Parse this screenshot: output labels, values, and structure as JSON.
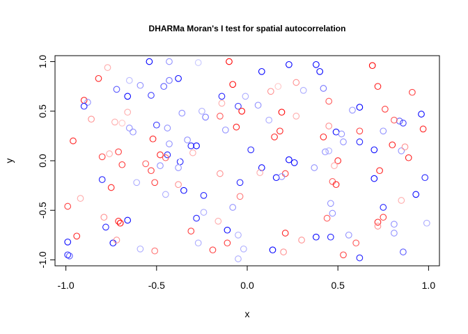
{
  "chart_data": {
    "type": "scatter",
    "title": "DHARMa Moran's I test for spatial autocorrelation",
    "xlabel": "x",
    "ylabel": "y",
    "xlim": [
      -1.06,
      1.06
    ],
    "ylim": [
      -1.06,
      1.06
    ],
    "xticks": [
      -1.0,
      -0.5,
      0.0,
      0.5,
      1.0
    ],
    "yticks": [
      -1.0,
      -0.5,
      0.0,
      0.5,
      1.0
    ],
    "xtick_labels": [
      "-1.0",
      "-0.5",
      "0.0",
      "0.5",
      "1.0"
    ],
    "ytick_labels": [
      "-1.0",
      "-0.5",
      "0.0",
      "0.5",
      "1.0"
    ],
    "marker": "open circle",
    "color_scale": "blue (low residual) to red (high residual), paler = closer to middle",
    "colors": {
      "low": "#0000ff",
      "high": "#ff0000"
    },
    "points": [
      {
        "x": -0.54,
        "y": 1.0,
        "c": 0.0
      },
      {
        "x": -0.43,
        "y": 1.0,
        "c": 0.3
      },
      {
        "x": -0.27,
        "y": 0.99,
        "c": 0.4
      },
      {
        "x": -0.1,
        "y": 1.0,
        "c": 1.0
      },
      {
        "x": 0.23,
        "y": 0.97,
        "c": 0.0
      },
      {
        "x": 0.38,
        "y": 0.97,
        "c": 0.0
      },
      {
        "x": 0.69,
        "y": 0.96,
        "c": 1.0
      },
      {
        "x": -0.77,
        "y": 0.94,
        "c": 0.65
      },
      {
        "x": 0.08,
        "y": 0.9,
        "c": 0.0
      },
      {
        "x": 0.4,
        "y": 0.9,
        "c": 0.0
      },
      {
        "x": -0.82,
        "y": 0.83,
        "c": 0.9
      },
      {
        "x": -0.65,
        "y": 0.81,
        "c": 0.38
      },
      {
        "x": -0.43,
        "y": 0.81,
        "c": 0.25
      },
      {
        "x": -0.38,
        "y": 0.83,
        "c": 0.05
      },
      {
        "x": -0.08,
        "y": 0.77,
        "c": 0.95
      },
      {
        "x": 0.27,
        "y": 0.79,
        "c": 0.7
      },
      {
        "x": 0.72,
        "y": 0.75,
        "c": 0.9
      },
      {
        "x": -0.72,
        "y": 0.72,
        "c": 0.2
      },
      {
        "x": -0.59,
        "y": 0.76,
        "c": 0.3
      },
      {
        "x": -0.46,
        "y": 0.75,
        "c": 0.2
      },
      {
        "x": 0.17,
        "y": 0.75,
        "c": 0.6
      },
      {
        "x": 0.31,
        "y": 0.71,
        "c": 0.35
      },
      {
        "x": 0.42,
        "y": 0.73,
        "c": 0.25
      },
      {
        "x": 0.13,
        "y": 0.7,
        "c": 0.7
      },
      {
        "x": 0.91,
        "y": 0.69,
        "c": 0.85
      },
      {
        "x": -0.66,
        "y": 0.65,
        "c": 0.0
      },
      {
        "x": -0.53,
        "y": 0.66,
        "c": 0.15
      },
      {
        "x": -0.14,
        "y": 0.65,
        "c": 0.1
      },
      {
        "x": -0.01,
        "y": 0.65,
        "c": 0.35
      },
      {
        "x": -0.9,
        "y": 0.61,
        "c": 0.9
      },
      {
        "x": -0.88,
        "y": 0.59,
        "c": 0.3
      },
      {
        "x": -0.9,
        "y": 0.55,
        "c": 0.1
      },
      {
        "x": -0.14,
        "y": 0.58,
        "c": 0.65
      },
      {
        "x": 0.45,
        "y": 0.6,
        "c": 0.8
      },
      {
        "x": -0.05,
        "y": 0.55,
        "c": 0.15
      },
      {
        "x": 0.06,
        "y": 0.56,
        "c": 0.3
      },
      {
        "x": 0.62,
        "y": 0.54,
        "c": 0.0
      },
      {
        "x": 0.58,
        "y": 0.51,
        "c": 0.3
      },
      {
        "x": 0.76,
        "y": 0.52,
        "c": 0.85
      },
      {
        "x": -0.03,
        "y": 0.5,
        "c": 0.95
      },
      {
        "x": 0.19,
        "y": 0.49,
        "c": 0.95
      },
      {
        "x": -0.36,
        "y": 0.48,
        "c": 0.3
      },
      {
        "x": -0.66,
        "y": 0.49,
        "c": 0.65
      },
      {
        "x": -0.25,
        "y": 0.5,
        "c": 0.35
      },
      {
        "x": -0.23,
        "y": 0.44,
        "c": 0.25
      },
      {
        "x": 0.27,
        "y": 0.45,
        "c": 0.65
      },
      {
        "x": 0.96,
        "y": 0.47,
        "c": 0.05
      },
      {
        "x": -0.86,
        "y": 0.42,
        "c": 0.7
      },
      {
        "x": -0.15,
        "y": 0.45,
        "c": 0.8
      },
      {
        "x": 0.12,
        "y": 0.41,
        "c": 0.35
      },
      {
        "x": -0.73,
        "y": 0.39,
        "c": 0.65
      },
      {
        "x": -0.69,
        "y": 0.38,
        "c": 0.6
      },
      {
        "x": 0.84,
        "y": 0.4,
        "c": 0.2
      },
      {
        "x": 0.86,
        "y": 0.38,
        "c": 0.15
      },
      {
        "x": 0.81,
        "y": 0.41,
        "c": 0.8
      },
      {
        "x": -0.5,
        "y": 0.36,
        "c": 0.15
      },
      {
        "x": -0.44,
        "y": 0.33,
        "c": 0.3
      },
      {
        "x": -0.65,
        "y": 0.33,
        "c": 0.3
      },
      {
        "x": -0.63,
        "y": 0.29,
        "c": 0.3
      },
      {
        "x": -0.12,
        "y": 0.31,
        "c": 0.3
      },
      {
        "x": -0.06,
        "y": 0.34,
        "c": 0.9
      },
      {
        "x": 0.18,
        "y": 0.3,
        "c": 0.9
      },
      {
        "x": 0.49,
        "y": 0.29,
        "c": 0.05
      },
      {
        "x": 0.45,
        "y": 0.35,
        "c": 0.7
      },
      {
        "x": 0.62,
        "y": 0.3,
        "c": 0.85
      },
      {
        "x": 0.75,
        "y": 0.3,
        "c": 0.3
      },
      {
        "x": 0.97,
        "y": 0.32,
        "c": 0.9
      },
      {
        "x": 0.15,
        "y": 0.24,
        "c": 0.9
      },
      {
        "x": 0.42,
        "y": 0.24,
        "c": 0.9
      },
      {
        "x": 0.52,
        "y": 0.27,
        "c": 0.3
      },
      {
        "x": -0.52,
        "y": 0.22,
        "c": 0.9
      },
      {
        "x": -0.33,
        "y": 0.21,
        "c": 0.3
      },
      {
        "x": 0.62,
        "y": 0.19,
        "c": 0.1
      },
      {
        "x": 0.53,
        "y": 0.19,
        "c": 0.3
      },
      {
        "x": 0.8,
        "y": 0.16,
        "c": 0.9
      },
      {
        "x": -0.96,
        "y": 0.2,
        "c": 0.9
      },
      {
        "x": -0.43,
        "y": 0.17,
        "c": 0.3
      },
      {
        "x": -0.31,
        "y": 0.15,
        "c": 0.1
      },
      {
        "x": -0.28,
        "y": 0.15,
        "c": 0.05
      },
      {
        "x": 0.02,
        "y": 0.11,
        "c": 0.1
      },
      {
        "x": 0.43,
        "y": 0.09,
        "c": 0.3
      },
      {
        "x": 0.45,
        "y": 0.1,
        "c": 0.35
      },
      {
        "x": 0.7,
        "y": 0.11,
        "c": 0.05
      },
      {
        "x": 0.85,
        "y": 0.1,
        "c": 0.3
      },
      {
        "x": 0.87,
        "y": 0.14,
        "c": 0.7
      },
      {
        "x": -0.71,
        "y": 0.09,
        "c": 0.85
      },
      {
        "x": -0.76,
        "y": 0.07,
        "c": 0.65
      },
      {
        "x": -0.44,
        "y": 0.06,
        "c": 0.1
      },
      {
        "x": -0.48,
        "y": 0.06,
        "c": 0.9
      },
      {
        "x": -0.45,
        "y": 0.03,
        "c": 0.8
      },
      {
        "x": -0.3,
        "y": 0.08,
        "c": 0.65
      },
      {
        "x": -0.8,
        "y": 0.04,
        "c": 0.85
      },
      {
        "x": 0.23,
        "y": 0.01,
        "c": 0.0
      },
      {
        "x": 0.26,
        "y": -0.02,
        "c": 0.05
      },
      {
        "x": 0.5,
        "y": 0.0,
        "c": 0.9
      },
      {
        "x": 0.89,
        "y": 0.03,
        "c": 0.9
      },
      {
        "x": -0.37,
        "y": -0.01,
        "c": 0.1
      },
      {
        "x": -0.38,
        "y": -0.01,
        "c": 0.5
      },
      {
        "x": -0.56,
        "y": -0.03,
        "c": 0.8
      },
      {
        "x": -0.69,
        "y": -0.04,
        "c": 0.85
      },
      {
        "x": -0.48,
        "y": -0.05,
        "c": 0.3
      },
      {
        "x": 0.08,
        "y": -0.07,
        "c": 0.05
      },
      {
        "x": 0.07,
        "y": -0.12,
        "c": 0.65
      },
      {
        "x": 0.37,
        "y": -0.07,
        "c": 0.3
      },
      {
        "x": 0.48,
        "y": -0.05,
        "c": 0.65
      },
      {
        "x": 0.73,
        "y": -0.1,
        "c": 0.9
      },
      {
        "x": -0.53,
        "y": -0.1,
        "c": 0.85
      },
      {
        "x": -0.38,
        "y": -0.07,
        "c": 0.3
      },
      {
        "x": -0.15,
        "y": -0.13,
        "c": 0.7
      },
      {
        "x": 0.16,
        "y": -0.17,
        "c": 0.0
      },
      {
        "x": 0.21,
        "y": -0.13,
        "c": 0.85
      },
      {
        "x": 0.19,
        "y": -0.16,
        "c": 0.3
      },
      {
        "x": 0.7,
        "y": -0.18,
        "c": 0.05
      },
      {
        "x": 0.98,
        "y": -0.17,
        "c": 0.1
      },
      {
        "x": -0.8,
        "y": -0.19,
        "c": 0.1
      },
      {
        "x": -0.61,
        "y": -0.22,
        "c": 0.35
      },
      {
        "x": -0.51,
        "y": -0.22,
        "c": 0.85
      },
      {
        "x": -0.04,
        "y": -0.22,
        "c": 0.1
      },
      {
        "x": 0.47,
        "y": -0.21,
        "c": 0.8
      },
      {
        "x": 0.49,
        "y": -0.24,
        "c": 0.9
      },
      {
        "x": -0.75,
        "y": -0.27,
        "c": 0.9
      },
      {
        "x": -0.35,
        "y": -0.3,
        "c": 0.05
      },
      {
        "x": -0.24,
        "y": -0.35,
        "c": 0.1
      },
      {
        "x": -0.04,
        "y": -0.36,
        "c": 0.75
      },
      {
        "x": -0.38,
        "y": -0.24,
        "c": 0.7
      },
      {
        "x": 0.93,
        "y": -0.34,
        "c": 0.05
      },
      {
        "x": -0.92,
        "y": -0.38,
        "c": 0.65
      },
      {
        "x": -0.45,
        "y": -0.34,
        "c": 0.35
      },
      {
        "x": 0.46,
        "y": -0.43,
        "c": 0.3
      },
      {
        "x": 0.85,
        "y": -0.4,
        "c": 0.65
      },
      {
        "x": -0.99,
        "y": -0.46,
        "c": 0.85
      },
      {
        "x": -0.08,
        "y": -0.47,
        "c": 0.3
      },
      {
        "x": 0.75,
        "y": -0.47,
        "c": 0.1
      },
      {
        "x": -0.24,
        "y": -0.52,
        "c": 0.35
      },
      {
        "x": 0.47,
        "y": -0.53,
        "c": 0.3
      },
      {
        "x": 0.75,
        "y": -0.57,
        "c": 0.85
      },
      {
        "x": 0.44,
        "y": -0.58,
        "c": 0.8
      },
      {
        "x": -0.79,
        "y": -0.57,
        "c": 0.7
      },
      {
        "x": -0.71,
        "y": -0.61,
        "c": 0.9
      },
      {
        "x": -0.7,
        "y": -0.63,
        "c": 0.95
      },
      {
        "x": -0.66,
        "y": -0.6,
        "c": 0.05
      },
      {
        "x": -0.16,
        "y": -0.61,
        "c": 0.65
      },
      {
        "x": -0.28,
        "y": -0.58,
        "c": 0.1
      },
      {
        "x": 0.72,
        "y": -0.62,
        "c": 0.9
      },
      {
        "x": 0.72,
        "y": -0.66,
        "c": 0.7
      },
      {
        "x": 0.81,
        "y": -0.64,
        "c": 0.3
      },
      {
        "x": 0.99,
        "y": -0.63,
        "c": 0.35
      },
      {
        "x": -0.78,
        "y": -0.67,
        "c": 0.1
      },
      {
        "x": -0.11,
        "y": -0.7,
        "c": 0.05
      },
      {
        "x": -0.31,
        "y": -0.71,
        "c": 0.85
      },
      {
        "x": 0.21,
        "y": -0.73,
        "c": 0.9
      },
      {
        "x": 0.81,
        "y": -0.73,
        "c": 0.3
      },
      {
        "x": -0.94,
        "y": -0.76,
        "c": 0.9
      },
      {
        "x": -0.05,
        "y": -0.75,
        "c": 0.35
      },
      {
        "x": 0.38,
        "y": -0.77,
        "c": 0.05
      },
      {
        "x": 0.46,
        "y": -0.77,
        "c": 0.1
      },
      {
        "x": 0.56,
        "y": -0.75,
        "c": 0.3
      },
      {
        "x": -0.99,
        "y": -0.82,
        "c": 0.05
      },
      {
        "x": -0.74,
        "y": -0.83,
        "c": 0.05
      },
      {
        "x": -0.72,
        "y": -0.8,
        "c": 0.7
      },
      {
        "x": -0.27,
        "y": -0.83,
        "c": 0.35
      },
      {
        "x": -0.11,
        "y": -0.83,
        "c": 0.85
      },
      {
        "x": 0.3,
        "y": -0.8,
        "c": 0.7
      },
      {
        "x": 0.6,
        "y": -0.83,
        "c": 0.8
      },
      {
        "x": -0.59,
        "y": -0.89,
        "c": 0.35
      },
      {
        "x": -0.51,
        "y": -0.91,
        "c": 0.75
      },
      {
        "x": -0.19,
        "y": -0.9,
        "c": 0.85
      },
      {
        "x": -0.02,
        "y": -0.89,
        "c": 0.35
      },
      {
        "x": 0.14,
        "y": -0.9,
        "c": 0.0
      },
      {
        "x": 0.2,
        "y": -0.92,
        "c": 0.7
      },
      {
        "x": -0.99,
        "y": -0.95,
        "c": 0.1
      },
      {
        "x": -0.98,
        "y": -0.96,
        "c": 0.2
      },
      {
        "x": -0.05,
        "y": -0.99,
        "c": 0.35
      },
      {
        "x": 0.53,
        "y": -0.95,
        "c": 0.85
      },
      {
        "x": 0.62,
        "y": -0.98,
        "c": 0.1
      },
      {
        "x": 0.86,
        "y": -0.92,
        "c": 0.2
      }
    ]
  }
}
